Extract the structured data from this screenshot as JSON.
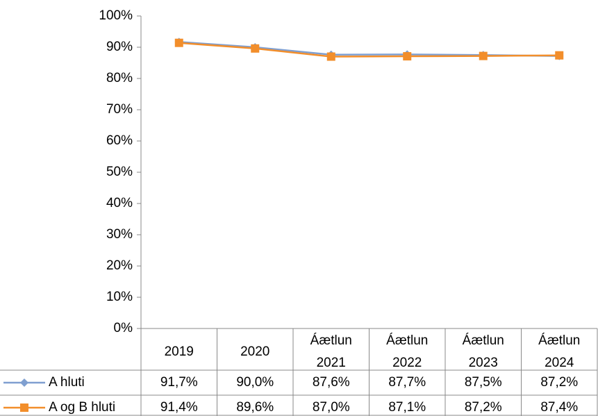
{
  "chart_data": {
    "type": "line",
    "categories": [
      "2019",
      "2020",
      "Áætlun 2021",
      "Áætlun 2022",
      "Áætlun 2023",
      "Áætlun 2024"
    ],
    "series": [
      {
        "name": "A hluti",
        "color": "#7f9fd0",
        "marker": "diamond",
        "values": [
          91.7,
          90.0,
          87.6,
          87.7,
          87.5,
          87.2
        ],
        "value_labels": [
          "91,7%",
          "90,0%",
          "87,6%",
          "87,7%",
          "87,5%",
          "87,2%"
        ]
      },
      {
        "name": "A og B hluti",
        "color": "#f28e2b",
        "marker": "square",
        "values": [
          91.4,
          89.6,
          87.0,
          87.1,
          87.2,
          87.4
        ],
        "value_labels": [
          "91,4%",
          "89,6%",
          "87,0%",
          "87,1%",
          "87,2%",
          "87,4%"
        ]
      }
    ],
    "ylim": [
      0,
      100
    ],
    "yticks": [
      {
        "value": 0,
        "label": "0%"
      },
      {
        "value": 10,
        "label": "10%"
      },
      {
        "value": 20,
        "label": "20%"
      },
      {
        "value": 30,
        "label": "30%"
      },
      {
        "value": 40,
        "label": "40%"
      },
      {
        "value": 50,
        "label": "50%"
      },
      {
        "value": 60,
        "label": "60%"
      },
      {
        "value": 70,
        "label": "70%"
      },
      {
        "value": 80,
        "label": "80%"
      },
      {
        "value": 90,
        "label": "90%"
      },
      {
        "value": 100,
        "label": "100%"
      }
    ],
    "grid": false
  }
}
